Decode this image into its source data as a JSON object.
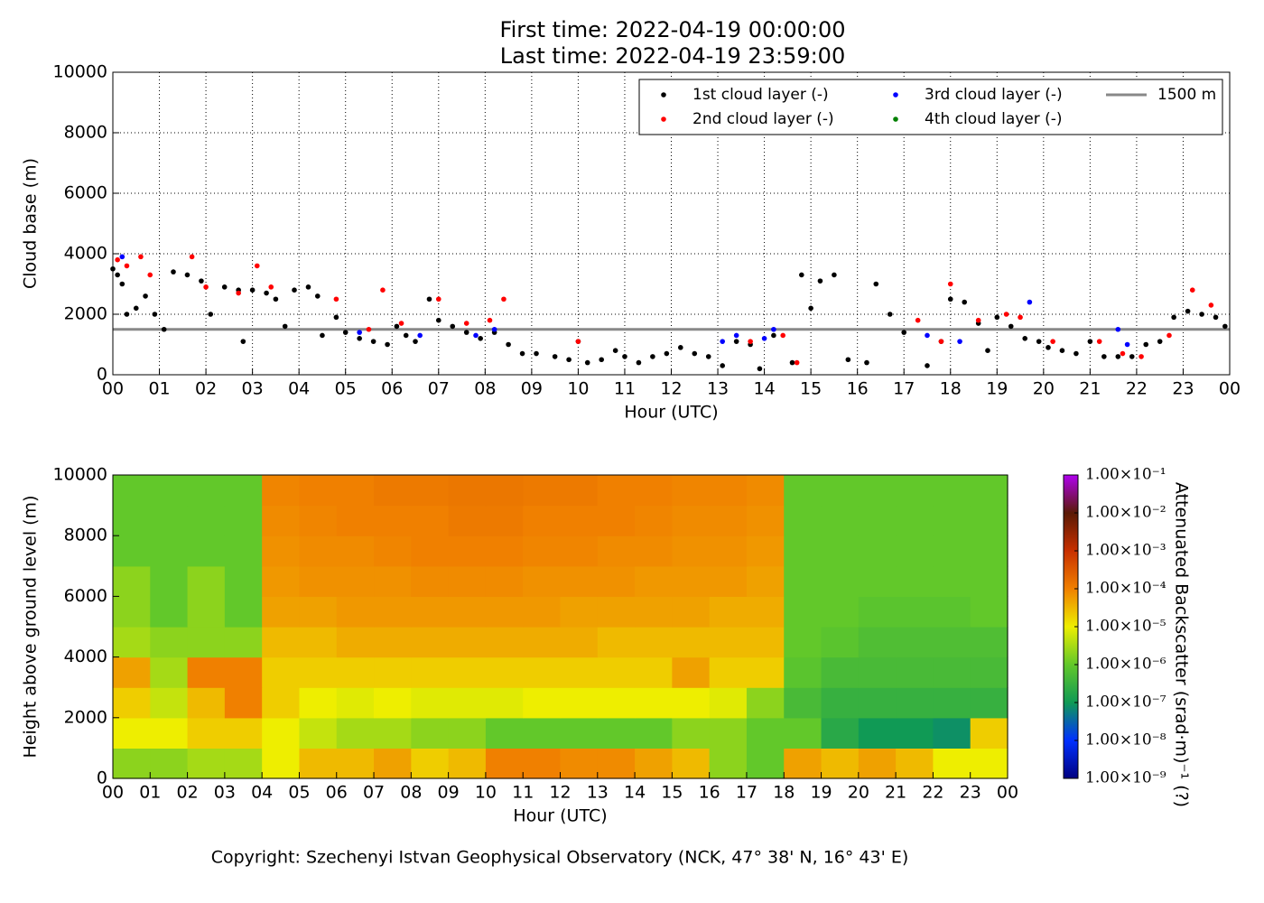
{
  "chart_data": [
    {
      "type": "scatter",
      "title": "First time: 2022-04-19 00:00:00",
      "subtitle": "Last time: 2022-04-19 23:59:00",
      "x_label": "Hour (UTC)",
      "y_label": "Cloud base (m)",
      "xlim": [
        0,
        24
      ],
      "ylim": [
        0,
        10000
      ],
      "xticks": [
        {
          "value": 0,
          "label": "00"
        },
        {
          "value": 1,
          "label": "01"
        },
        {
          "value": 2,
          "label": "02"
        },
        {
          "value": 3,
          "label": "03"
        },
        {
          "value": 4,
          "label": "04"
        },
        {
          "value": 5,
          "label": "05"
        },
        {
          "value": 6,
          "label": "06"
        },
        {
          "value": 7,
          "label": "07"
        },
        {
          "value": 8,
          "label": "08"
        },
        {
          "value": 9,
          "label": "09"
        },
        {
          "value": 10,
          "label": "10"
        },
        {
          "value": 11,
          "label": "11"
        },
        {
          "value": 12,
          "label": "12"
        },
        {
          "value": 13,
          "label": "13"
        },
        {
          "value": 14,
          "label": "14"
        },
        {
          "value": 15,
          "label": "15"
        },
        {
          "value": 16,
          "label": "16"
        },
        {
          "value": 17,
          "label": "17"
        },
        {
          "value": 18,
          "label": "18"
        },
        {
          "value": 19,
          "label": "19"
        },
        {
          "value": 20,
          "label": "20"
        },
        {
          "value": 21,
          "label": "21"
        },
        {
          "value": 22,
          "label": "22"
        },
        {
          "value": 23,
          "label": "23"
        },
        {
          "value": 24,
          "label": "00"
        }
      ],
      "yticks": [
        0,
        2000,
        4000,
        6000,
        8000,
        10000
      ],
      "grid": true,
      "legend": "upper right",
      "series": [
        {
          "name": "1st cloud layer (-)",
          "color": "#000000",
          "x": [
            0.0,
            0.1,
            0.2,
            0.3,
            0.5,
            0.7,
            0.9,
            1.1,
            1.3,
            1.6,
            1.9,
            2.1,
            2.4,
            2.7,
            2.8,
            3.0,
            3.3,
            3.5,
            3.7,
            3.9,
            4.2,
            4.4,
            4.5,
            4.8,
            5.0,
            5.3,
            5.6,
            5.9,
            6.1,
            6.3,
            6.5,
            6.8,
            7.0,
            7.3,
            7.6,
            7.9,
            8.2,
            8.5,
            8.8,
            9.1,
            9.5,
            9.8,
            10.0,
            10.2,
            10.5,
            10.8,
            11.0,
            11.3,
            11.6,
            11.9,
            12.2,
            12.5,
            12.8,
            13.1,
            13.4,
            13.7,
            13.9,
            14.2,
            14.6,
            14.8,
            15.0,
            15.2,
            15.5,
            15.8,
            16.2,
            16.4,
            16.7,
            17.0,
            17.5,
            17.8,
            18.0,
            18.3,
            18.6,
            18.8,
            19.0,
            19.3,
            19.6,
            19.9,
            20.1,
            20.4,
            20.7,
            21.0,
            21.3,
            21.6,
            21.9,
            22.2,
            22.5,
            22.8,
            23.1,
            23.4,
            23.7,
            23.9
          ],
          "values": [
            3500,
            3300,
            3000,
            2000,
            2200,
            2600,
            2000,
            1500,
            3400,
            3300,
            3100,
            2000,
            2900,
            2800,
            1100,
            2800,
            2700,
            2500,
            1600,
            2800,
            2900,
            2600,
            1300,
            1900,
            1400,
            1200,
            1100,
            1000,
            1600,
            1300,
            1100,
            2500,
            1800,
            1600,
            1400,
            1200,
            1400,
            1000,
            700,
            700,
            600,
            500,
            1100,
            400,
            500,
            800,
            600,
            400,
            600,
            700,
            900,
            700,
            600,
            300,
            1100,
            1000,
            200,
            1300,
            400,
            3300,
            2200,
            3100,
            3300,
            500,
            400,
            3000,
            2000,
            1400,
            300,
            1100,
            2500,
            2400,
            1700,
            800,
            1900,
            1600,
            1200,
            1100,
            900,
            800,
            700,
            1100,
            600,
            600,
            600,
            1000,
            1100,
            1900,
            2100,
            2000,
            1900,
            1600
          ]
        },
        {
          "name": "2nd cloud layer (-)",
          "color": "#ff0000",
          "x": [
            0.1,
            0.3,
            0.6,
            0.8,
            1.7,
            2.0,
            2.7,
            3.1,
            3.4,
            4.8,
            5.5,
            5.8,
            6.2,
            7.0,
            7.6,
            8.1,
            8.4,
            10.0,
            13.7,
            14.4,
            14.7,
            17.3,
            17.8,
            18.0,
            18.6,
            19.2,
            19.5,
            20.2,
            21.2,
            21.7,
            22.1,
            22.7,
            23.2,
            23.6
          ],
          "values": [
            3800,
            3600,
            3900,
            3300,
            3900,
            2900,
            2700,
            3600,
            2900,
            2500,
            1500,
            2800,
            1700,
            2500,
            1700,
            1800,
            2500,
            1100,
            1100,
            1300,
            400,
            1800,
            1100,
            3000,
            1800,
            2000,
            1900,
            1100,
            1100,
            700,
            600,
            1300,
            2800,
            2300
          ]
        },
        {
          "name": "3rd cloud layer (-)",
          "color": "#0000ff",
          "x": [
            0.2,
            5.3,
            6.6,
            7.8,
            8.2,
            13.1,
            13.4,
            14.0,
            14.2,
            17.5,
            18.2,
            19.7,
            21.6,
            21.8
          ],
          "values": [
            3900,
            1400,
            1300,
            1300,
            1500,
            1100,
            1300,
            1200,
            1500,
            1300,
            1100,
            2400,
            1500,
            1000
          ]
        },
        {
          "name": "4th cloud layer (-)",
          "color": "#008000",
          "x": [],
          "values": []
        }
      ],
      "reference_line": {
        "name": "1500 m",
        "value": 1500,
        "color": "#888888"
      }
    },
    {
      "type": "heatmap",
      "x_label": "Hour (UTC)",
      "y_label": "Height above ground level (m)",
      "xlim": [
        0,
        24
      ],
      "ylim": [
        0,
        10000
      ],
      "xticks": [
        {
          "value": 0,
          "label": "00"
        },
        {
          "value": 1,
          "label": "01"
        },
        {
          "value": 2,
          "label": "02"
        },
        {
          "value": 3,
          "label": "03"
        },
        {
          "value": 4,
          "label": "04"
        },
        {
          "value": 5,
          "label": "05"
        },
        {
          "value": 6,
          "label": "06"
        },
        {
          "value": 7,
          "label": "07"
        },
        {
          "value": 8,
          "label": "08"
        },
        {
          "value": 9,
          "label": "09"
        },
        {
          "value": 10,
          "label": "10"
        },
        {
          "value": 11,
          "label": "11"
        },
        {
          "value": 12,
          "label": "12"
        },
        {
          "value": 13,
          "label": "13"
        },
        {
          "value": 14,
          "label": "14"
        },
        {
          "value": 15,
          "label": "15"
        },
        {
          "value": 16,
          "label": "16"
        },
        {
          "value": 17,
          "label": "17"
        },
        {
          "value": 18,
          "label": "18"
        },
        {
          "value": 19,
          "label": "19"
        },
        {
          "value": 20,
          "label": "20"
        },
        {
          "value": 21,
          "label": "21"
        },
        {
          "value": 22,
          "label": "22"
        },
        {
          "value": 23,
          "label": "23"
        },
        {
          "value": 24,
          "label": "00"
        }
      ],
      "yticks": [
        0,
        2000,
        4000,
        6000,
        8000,
        10000
      ],
      "x_edges": [
        0,
        1,
        2,
        3,
        4,
        5,
        6,
        7,
        8,
        9,
        10,
        11,
        12,
        13,
        14,
        15,
        16,
        17,
        18,
        19,
        20,
        21,
        22,
        23,
        24
      ],
      "y_edges": [
        0,
        1000,
        2000,
        3000,
        4000,
        5000,
        6000,
        7000,
        8000,
        9000,
        10000
      ],
      "z": [
        [
          2e-06,
          2e-06,
          3e-06,
          3e-06,
          1e-05,
          3e-05,
          3e-05,
          5e-05,
          2e-05,
          3e-05,
          0.0001,
          0.0001,
          8e-05,
          8e-05,
          5e-05,
          3e-05,
          2e-06,
          1e-06,
          5e-05,
          3e-05,
          5e-05,
          3e-05,
          1e-05,
          1e-05
        ],
        [
          1e-05,
          1e-05,
          2e-05,
          2e-05,
          1e-05,
          5e-06,
          3e-06,
          3e-06,
          2e-06,
          2e-06,
          1e-06,
          1e-06,
          1e-06,
          1e-06,
          1e-06,
          2e-06,
          2e-06,
          1e-06,
          1e-06,
          2e-07,
          1e-07,
          1e-07,
          8e-08,
          2e-05
        ],
        [
          2e-05,
          5e-06,
          3e-05,
          0.0001,
          2e-05,
          1e-05,
          8e-06,
          1e-05,
          8e-06,
          8e-06,
          8e-06,
          1e-05,
          1e-05,
          1e-05,
          1e-05,
          1e-05,
          8e-06,
          2e-06,
          5e-07,
          3e-07,
          3e-07,
          3e-07,
          3e-07,
          3e-07
        ],
        [
          5e-05,
          3e-06,
          0.0001,
          0.0001,
          2e-05,
          2e-05,
          2e-05,
          2e-05,
          2e-05,
          2e-05,
          2e-05,
          2e-05,
          2e-05,
          2e-05,
          2e-05,
          5e-05,
          2e-05,
          2e-05,
          8e-07,
          5e-07,
          5e-07,
          5e-07,
          5e-07,
          5e-07
        ],
        [
          3e-06,
          2e-06,
          2e-06,
          2e-06,
          3e-05,
          3e-05,
          4e-05,
          4e-05,
          4e-05,
          4e-05,
          4e-05,
          4e-05,
          4e-05,
          3e-05,
          3e-05,
          3e-05,
          3e-05,
          3e-05,
          1e-06,
          8e-07,
          6e-07,
          6e-07,
          6e-07,
          6e-07
        ],
        [
          2e-06,
          1e-06,
          2e-06,
          1e-06,
          5e-05,
          5e-05,
          6e-05,
          6e-05,
          6e-05,
          6e-05,
          6e-05,
          6e-05,
          5e-05,
          5e-05,
          5e-05,
          5e-05,
          4e-05,
          4e-05,
          1e-06,
          1e-06,
          8e-07,
          8e-07,
          8e-07,
          1e-06
        ],
        [
          2e-06,
          1e-06,
          2e-06,
          1e-06,
          6e-05,
          7e-05,
          7e-05,
          7e-05,
          8e-05,
          8e-05,
          8e-05,
          7e-05,
          7e-05,
          7e-05,
          6e-05,
          6e-05,
          6e-05,
          5e-05,
          1e-06,
          1e-06,
          1e-06,
          1e-06,
          1e-06,
          1e-06
        ],
        [
          1e-06,
          1e-06,
          1e-06,
          1e-06,
          7e-05,
          8e-05,
          8e-05,
          9e-05,
          0.0001,
          0.0001,
          0.0001,
          9e-05,
          9e-05,
          8e-05,
          8e-05,
          7e-05,
          7e-05,
          6e-05,
          1e-06,
          1e-06,
          1e-06,
          1e-06,
          1e-06,
          1e-06
        ],
        [
          1e-06,
          1e-06,
          1e-06,
          1e-06,
          8e-05,
          9e-05,
          0.0001,
          0.0001,
          0.0001,
          0.00012,
          0.00012,
          0.0001,
          0.0001,
          0.0001,
          9e-05,
          8e-05,
          8e-05,
          7e-05,
          1e-06,
          1e-06,
          1e-06,
          1e-06,
          1e-06,
          1e-06
        ],
        [
          1e-06,
          1e-06,
          1e-06,
          1e-06,
          9e-05,
          0.0001,
          0.0001,
          0.00012,
          0.00012,
          0.00013,
          0.00013,
          0.00012,
          0.00012,
          0.0001,
          0.0001,
          9e-05,
          9e-05,
          8e-05,
          1e-06,
          1e-06,
          1e-06,
          1e-06,
          1e-06,
          1e-06
        ]
      ],
      "zscale": "log",
      "zlim": [
        1e-09,
        0.1
      ],
      "colorscale": [
        "#000080",
        "#0030ff",
        "#109a55",
        "#62c82a",
        "#eeee00",
        "#f08000",
        "#c83000",
        "#5a1a05",
        "#b000f0"
      ],
      "colorbar_label": "Attenuated Backscatter (srad·m)⁻¹ (?)",
      "zticks": [
        {
          "value": 1e-09,
          "label": "1.00×10⁻⁹"
        },
        {
          "value": 1e-08,
          "label": "1.00×10⁻⁸"
        },
        {
          "value": 1e-07,
          "label": "1.00×10⁻⁷"
        },
        {
          "value": 1e-06,
          "label": "1.00×10⁻⁶"
        },
        {
          "value": 1e-05,
          "label": "1.00×10⁻⁵"
        },
        {
          "value": 0.0001,
          "label": "1.00×10⁻⁴"
        },
        {
          "value": 0.001,
          "label": "1.00×10⁻³"
        },
        {
          "value": 0.01,
          "label": "1.00×10⁻²"
        },
        {
          "value": 0.1,
          "label": "1.00×10⁻¹"
        }
      ]
    }
  ],
  "footer": "Copyright: Szechenyi Istvan Geophysical Observatory (NCK, 47° 38' N, 16° 43' E)"
}
